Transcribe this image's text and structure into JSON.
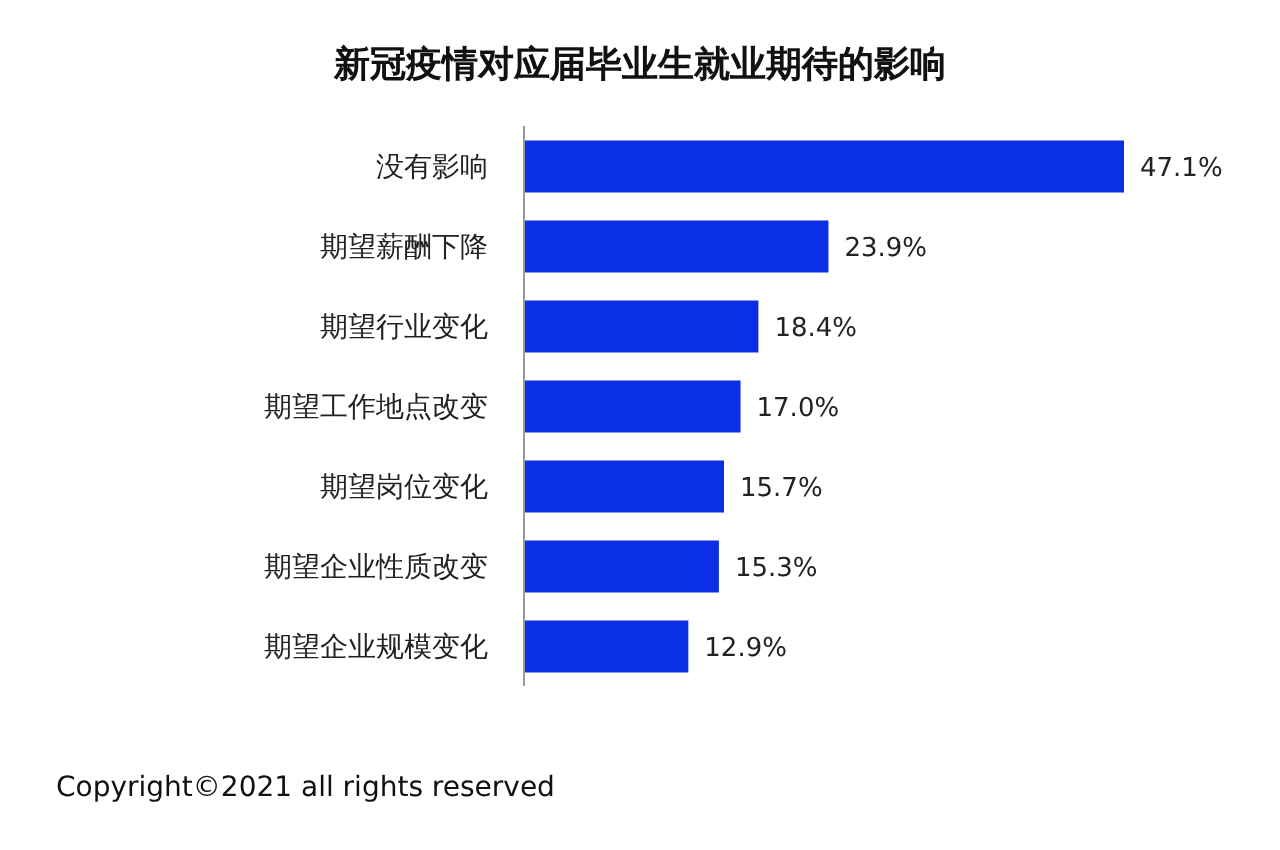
{
  "chart_data": {
    "type": "bar",
    "orientation": "horizontal",
    "title": "新冠疫情对应届毕业生就业期待的影响",
    "categories": [
      "没有影响",
      "期望薪酬下降",
      "期望行业变化",
      "期望工作地点改变",
      "期望岗位变化",
      "期望企业性质改变",
      "期望企业规模变化"
    ],
    "values": [
      47.1,
      23.9,
      18.4,
      17.0,
      15.7,
      15.3,
      12.9
    ],
    "value_labels": [
      "47.1%",
      "23.9%",
      "18.4%",
      "17.0%",
      "15.7%",
      "15.3%",
      "12.9%"
    ],
    "color": "#0b2fe6",
    "annotations": [
      "Copyright©2021 all rights reserved"
    ]
  }
}
